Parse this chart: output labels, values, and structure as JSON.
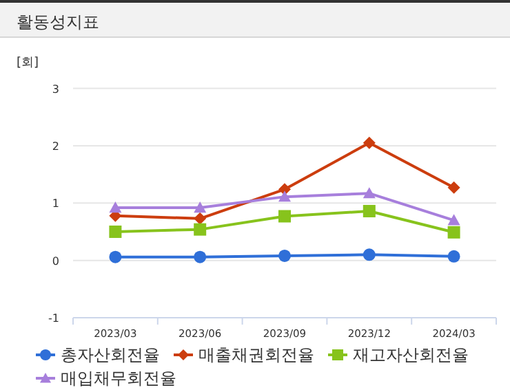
{
  "chart_data": {
    "type": "line",
    "title": "활동성지표",
    "ylabel": "[회]",
    "categories": [
      "2023/03",
      "2023/06",
      "2023/09",
      "2023/12",
      "2024/03"
    ],
    "series": [
      {
        "name": "총자산회전율",
        "color": "#2f6fd8",
        "marker": "circle",
        "values": [
          0.06,
          0.06,
          0.08,
          0.1,
          0.07
        ]
      },
      {
        "name": "매출채권회전율",
        "color": "#cc3d0e",
        "marker": "diamond",
        "values": [
          0.78,
          0.73,
          1.24,
          2.05,
          1.27
        ]
      },
      {
        "name": "재고자산회전율",
        "color": "#87c31c",
        "marker": "square",
        "values": [
          0.5,
          0.54,
          0.77,
          0.86,
          0.49
        ]
      },
      {
        "name": "매입채무회전율",
        "color": "#a77fdc",
        "marker": "triangle",
        "values": [
          0.92,
          0.92,
          1.11,
          1.17,
          0.7
        ]
      }
    ],
    "ylim": [
      -1,
      3
    ],
    "yticks": [
      -1,
      0,
      1,
      2,
      3
    ],
    "grid": "y",
    "legend": "bottom",
    "line_style": "solid"
  }
}
